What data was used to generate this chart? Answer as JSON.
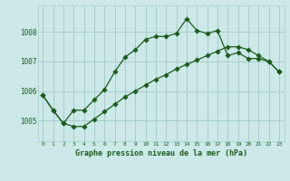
{
  "title": "Graphe pression niveau de la mer (hPa)",
  "background_color": "#cce8e8",
  "grid_color": "#aacccc",
  "line_color": "#1a5c1a",
  "xlim": [
    -0.5,
    23.5
  ],
  "ylim": [
    1004.3,
    1008.9
  ],
  "yticks": [
    1005,
    1006,
    1007,
    1008
  ],
  "xticks": [
    0,
    1,
    2,
    3,
    4,
    5,
    6,
    7,
    8,
    9,
    10,
    11,
    12,
    13,
    14,
    15,
    16,
    17,
    18,
    19,
    20,
    21,
    22,
    23
  ],
  "series1_x": [
    0,
    1,
    2,
    3,
    4,
    5,
    6,
    7,
    8,
    9,
    10,
    11,
    12,
    13,
    14,
    15,
    16,
    17,
    18,
    19,
    20,
    21,
    22,
    23
  ],
  "series1_y": [
    1005.85,
    1005.35,
    1004.9,
    1004.8,
    1004.8,
    1005.05,
    1005.3,
    1005.55,
    1005.8,
    1006.0,
    1006.2,
    1006.4,
    1006.55,
    1006.75,
    1006.9,
    1007.05,
    1007.2,
    1007.35,
    1007.5,
    1007.5,
    1007.4,
    1007.2,
    1007.0,
    1006.65
  ],
  "series2_x": [
    0,
    1,
    2,
    3,
    4,
    5,
    6,
    7,
    8,
    9,
    10,
    11,
    12,
    13,
    14,
    15,
    16,
    17,
    18,
    19,
    20,
    21,
    22,
    23
  ],
  "series2_y": [
    1005.85,
    1005.35,
    1004.9,
    1005.35,
    1005.35,
    1005.7,
    1006.05,
    1006.65,
    1007.15,
    1007.4,
    1007.75,
    1007.85,
    1007.85,
    1007.95,
    1008.45,
    1008.05,
    1007.95,
    1008.05,
    1007.2,
    1007.3,
    1007.1,
    1007.1,
    1007.0,
    1006.65
  ]
}
